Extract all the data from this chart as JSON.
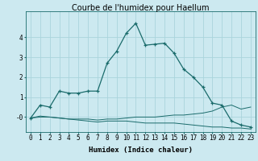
{
  "title": "Courbe de l'humidex pour Haellum",
  "xlabel": "Humidex (Indice chaleur)",
  "bg_color": "#cce9f0",
  "grid_color": "#aad4dc",
  "line_color": "#1a6b6b",
  "x": [
    0,
    1,
    2,
    3,
    4,
    5,
    6,
    7,
    8,
    9,
    10,
    11,
    12,
    13,
    14,
    15,
    16,
    17,
    18,
    19,
    20,
    21,
    22,
    23
  ],
  "line1": [
    -0.05,
    0.6,
    0.5,
    1.3,
    1.2,
    1.2,
    1.3,
    1.3,
    2.7,
    3.3,
    4.2,
    4.7,
    3.6,
    3.65,
    3.7,
    3.2,
    2.4,
    2.0,
    1.5,
    0.7,
    0.6,
    -0.2,
    -0.4,
    -0.5
  ],
  "line2": [
    -0.05,
    0.05,
    0.0,
    -0.05,
    -0.1,
    -0.1,
    -0.1,
    -0.15,
    -0.1,
    -0.1,
    -0.05,
    -0.0,
    -0.0,
    0.0,
    0.05,
    0.1,
    0.1,
    0.15,
    0.2,
    0.3,
    0.5,
    0.6,
    0.4,
    0.5
  ],
  "line3": [
    -0.05,
    -0.0,
    -0.0,
    -0.05,
    -0.1,
    -0.15,
    -0.2,
    -0.25,
    -0.2,
    -0.2,
    -0.2,
    -0.25,
    -0.3,
    -0.3,
    -0.3,
    -0.3,
    -0.35,
    -0.4,
    -0.45,
    -0.5,
    -0.5,
    -0.55,
    -0.55,
    -0.6
  ],
  "ylim": [
    -0.75,
    5.3
  ],
  "xlim": [
    -0.5,
    23.5
  ],
  "yticks": [
    0,
    1,
    2,
    3,
    4
  ],
  "ytick_labels": [
    "-0",
    "1",
    "2",
    "3",
    "4"
  ],
  "xticks": [
    0,
    1,
    2,
    3,
    4,
    5,
    6,
    7,
    8,
    9,
    10,
    11,
    12,
    13,
    14,
    15,
    16,
    17,
    18,
    19,
    20,
    21,
    22,
    23
  ],
  "title_fontsize": 7,
  "axis_fontsize": 6.5,
  "tick_fontsize": 5.5
}
